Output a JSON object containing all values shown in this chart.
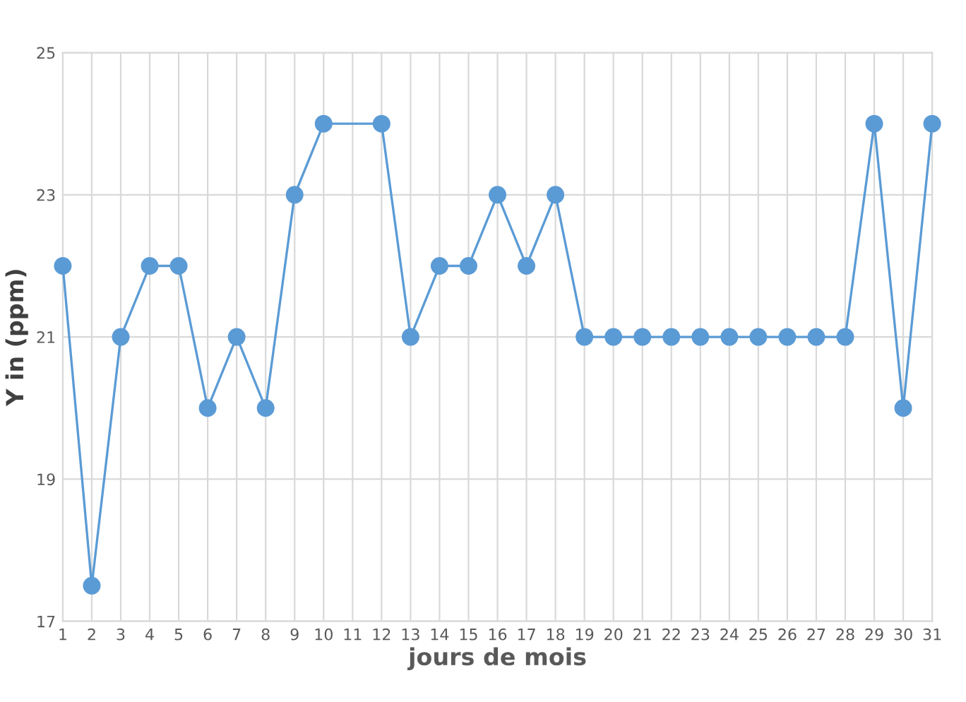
{
  "chart_data": {
    "type": "line",
    "xlabel": "jours de mois",
    "ylabel": "Y in (ppm)",
    "x": [
      1,
      2,
      3,
      4,
      5,
      6,
      7,
      8,
      9,
      10,
      12,
      13,
      14,
      15,
      16,
      17,
      18,
      19,
      20,
      21,
      22,
      23,
      24,
      25,
      26,
      27,
      28,
      29,
      30,
      31
    ],
    "series": [
      {
        "color": "#5b9bd5",
        "values": [
          22,
          17.5,
          21,
          22,
          22,
          20,
          21,
          20,
          23,
          24,
          24,
          21,
          22,
          22,
          23,
          22,
          23,
          21,
          21,
          21,
          21,
          21,
          21,
          21,
          21,
          21,
          21,
          24,
          20,
          24
        ]
      }
    ],
    "xlim": [
      1,
      31
    ],
    "xticks": [
      1,
      2,
      3,
      4,
      5,
      6,
      7,
      8,
      9,
      10,
      11,
      12,
      13,
      14,
      15,
      16,
      17,
      18,
      19,
      20,
      21,
      22,
      23,
      24,
      25,
      26,
      27,
      28,
      29,
      30,
      31
    ],
    "ylim": [
      17,
      25
    ],
    "yticks": [
      17,
      19,
      21,
      23,
      25
    ],
    "grid": true,
    "marker": "circle",
    "line_style": "solid",
    "legend": false
  }
}
